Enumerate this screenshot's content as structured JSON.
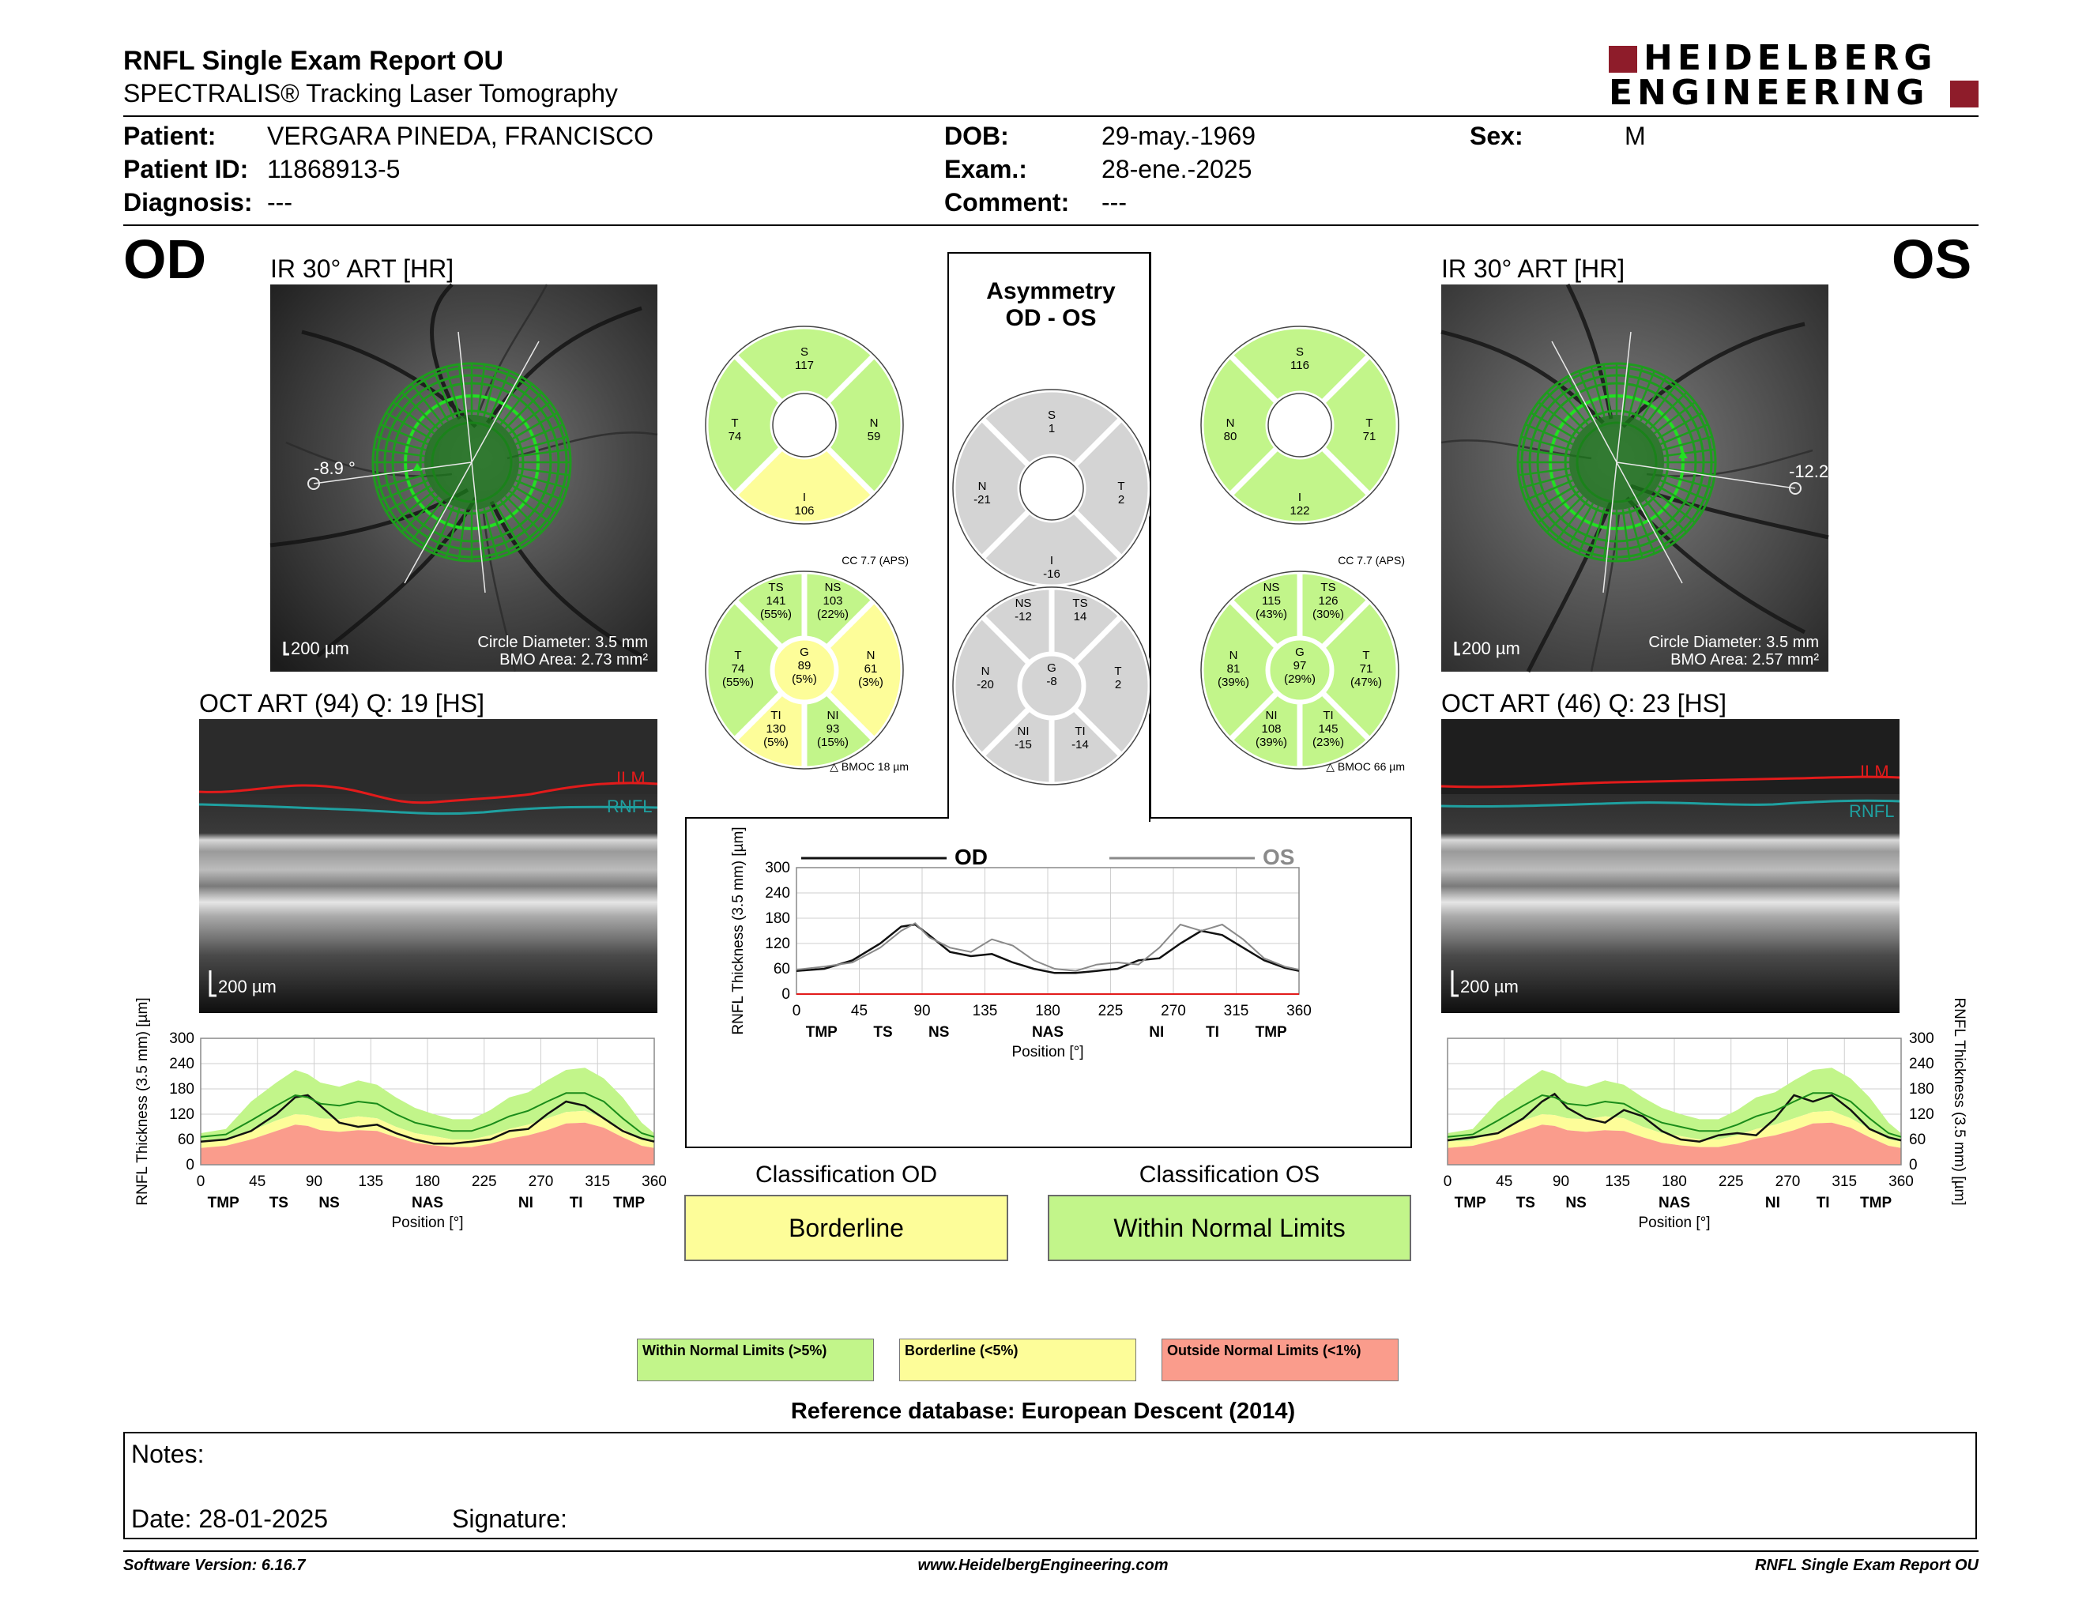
{
  "header": {
    "title": "RNFL Single Exam Report OU",
    "subtitle": "SPECTRALIS® Tracking Laser Tomography",
    "brand_line1": "HEIDELBERG",
    "brand_line2": "ENGINEERING"
  },
  "patient": {
    "patient_label": "Patient:",
    "patient_value": "VERGARA PINEDA, FRANCISCO",
    "id_label": "Patient ID:",
    "id_value": "11868913-5",
    "diag_label": "Diagnosis:",
    "diag_value": "---",
    "dob_label": "DOB:",
    "dob_value": "29-may.-1969",
    "exam_label": "Exam.:",
    "exam_value": "28-ene.-2025",
    "comment_label": "Comment:",
    "comment_value": "---",
    "sex_label": "Sex:",
    "sex_value": "M"
  },
  "od": {
    "eye": "OD",
    "ir_title": "IR 30° ART [HR]",
    "angle": "-8.9 °",
    "scale": "200 µm",
    "circle": "Circle Diameter: 3.5 mm",
    "bmo": "BMO Area: 2.73 mm²",
    "oct_title": "OCT ART (94) Q: 19 [HS]",
    "oct_scale": "200 µm",
    "ilm": "ILM",
    "rnfl": "RNFL",
    "quad": {
      "S": "117",
      "N": "59",
      "I": "106",
      "T": "74"
    },
    "cc": "CC 7.7 (APS)",
    "bmoc": "BMOC 18 µm",
    "sectors": {
      "TS": {
        "v": "141",
        "p": "(55%)"
      },
      "NS": {
        "v": "103",
        "p": "(22%)"
      },
      "T": {
        "v": "74",
        "p": "(55%)"
      },
      "G": {
        "v": "89",
        "p": "(5%)"
      },
      "N": {
        "v": "61",
        "p": "(3%)"
      },
      "TI": {
        "v": "130",
        "p": "(5%)"
      },
      "NI": {
        "v": "93",
        "p": "(15%)"
      }
    },
    "class_title": "Classification OD",
    "class_value": "Borderline"
  },
  "os": {
    "eye": "OS",
    "ir_title": "IR 30° ART [HR]",
    "angle": "-12.2",
    "scale": "200 µm",
    "circle": "Circle Diameter: 3.5 mm",
    "bmo": "BMO Area: 2.57 mm²",
    "oct_title": "OCT ART (46) Q: 23 [HS]",
    "oct_scale": "200 µm",
    "ilm": "ILM",
    "rnfl": "RNFL",
    "quad": {
      "S": "116",
      "N": "80",
      "I": "122",
      "T": "71"
    },
    "cc": "CC 7.7 (APS)",
    "bmoc": "BMOC 66 µm",
    "sectors": {
      "NS": {
        "v": "115",
        "p": "(43%)"
      },
      "TS": {
        "v": "126",
        "p": "(30%)"
      },
      "N": {
        "v": "81",
        "p": "(39%)"
      },
      "G": {
        "v": "97",
        "p": "(29%)"
      },
      "T": {
        "v": "71",
        "p": "(47%)"
      },
      "NI": {
        "v": "108",
        "p": "(39%)"
      },
      "TI": {
        "v": "145",
        "p": "(23%)"
      }
    },
    "class_title": "Classification OS",
    "class_value": "Within Normal Limits"
  },
  "asym": {
    "title1": "Asymmetry",
    "title2": "OD - OS",
    "quad": {
      "S": "1",
      "N": "-21",
      "T": "2",
      "I": "-16"
    },
    "sectors": {
      "NS": "-12",
      "TS": "14",
      "N": "-20",
      "G": "-8",
      "T": "2",
      "NI": "-15",
      "TI": "-14"
    }
  },
  "legend": {
    "wnl": "Within Normal Limits (>5%)",
    "bl": "Borderline (<5%)",
    "onl": "Outside Normal Limits (<1%)",
    "db": "Reference database: European Descent (2014)"
  },
  "notes": {
    "notes_label": "Notes:",
    "date_label": "Date: 28-01-2025",
    "sig_label": "Signature:"
  },
  "footer": {
    "version": "Software Version: 6.16.7",
    "url": "www.HeidelbergEngineering.com",
    "report": "RNFL Single Exam Report OU"
  },
  "colors": {
    "wnl": "#c2f58a",
    "bl": "#fdfd99",
    "onl": "#fa9c8c",
    "gray": "#d4d4d4",
    "brand": "#8e1c2a",
    "ilm": "#e21b1b",
    "rnfl": "#1fa0a0",
    "green_circle": "#19c319"
  },
  "chart_data": [
    {
      "type": "line",
      "name": "od-profile",
      "xlabel": "Position [°]",
      "ylabel": "RNFL Thickness (3.5 mm) [µm]",
      "xlim": [
        0,
        360
      ],
      "ylim": [
        0,
        300
      ],
      "xticks": [
        0,
        45,
        90,
        135,
        180,
        225,
        270,
        315,
        360
      ],
      "yticks": [
        0,
        60,
        120,
        180,
        240,
        300
      ],
      "sector_labels": [
        {
          "x": 18,
          "t": "TMP"
        },
        {
          "x": 62,
          "t": "TS"
        },
        {
          "x": 102,
          "t": "NS"
        },
        {
          "x": 180,
          "t": "NAS"
        },
        {
          "x": 258,
          "t": "NI"
        },
        {
          "x": 298,
          "t": "TI"
        },
        {
          "x": 340,
          "t": "TMP"
        }
      ],
      "x": [
        0,
        20,
        40,
        60,
        75,
        85,
        95,
        110,
        125,
        140,
        155,
        170,
        185,
        200,
        215,
        230,
        245,
        260,
        275,
        290,
        305,
        320,
        335,
        350,
        360
      ],
      "series": [
        {
          "values": [
            55,
            60,
            80,
            120,
            160,
            165,
            140,
            100,
            90,
            95,
            75,
            60,
            50,
            50,
            55,
            60,
            80,
            85,
            120,
            150,
            140,
            110,
            80,
            62,
            55
          ]
        },
        {
          "values": [
            66,
            72,
            105,
            140,
            165,
            160,
            145,
            140,
            150,
            145,
            120,
            100,
            90,
            80,
            80,
            95,
            115,
            128,
            150,
            170,
            170,
            150,
            110,
            75,
            66
          ]
        }
      ],
      "bands": {
        "bl_upper": [
          75,
          85,
          150,
          195,
          225,
          215,
          195,
          185,
          200,
          190,
          160,
          135,
          120,
          108,
          108,
          130,
          160,
          172,
          200,
          225,
          230,
          205,
          160,
          100,
          75
        ],
        "wnl_lower": [
          55,
          58,
          80,
          105,
          120,
          118,
          110,
          108,
          115,
          110,
          90,
          75,
          68,
          60,
          60,
          70,
          85,
          95,
          110,
          125,
          128,
          110,
          85,
          60,
          55
        ],
        "onl_upper": [
          40,
          45,
          60,
          80,
          95,
          92,
          82,
          78,
          82,
          80,
          65,
          52,
          46,
          42,
          42,
          50,
          62,
          70,
          82,
          98,
          100,
          88,
          65,
          45,
          40
        ]
      }
    },
    {
      "type": "line",
      "name": "ou-comparison",
      "xlabel": "Position [°]",
      "ylabel": "RNFL Thickness (3.5 mm) [µm]",
      "xlim": [
        0,
        360
      ],
      "ylim": [
        0,
        300
      ],
      "xticks": [
        0,
        45,
        90,
        135,
        180,
        225,
        270,
        315,
        360
      ],
      "yticks": [
        0,
        60,
        120,
        180,
        240,
        300
      ],
      "sector_labels": [
        {
          "x": 18,
          "t": "TMP"
        },
        {
          "x": 62,
          "t": "TS"
        },
        {
          "x": 102,
          "t": "NS"
        },
        {
          "x": 180,
          "t": "NAS"
        },
        {
          "x": 258,
          "t": "NI"
        },
        {
          "x": 298,
          "t": "TI"
        },
        {
          "x": 340,
          "t": "TMP"
        }
      ],
      "legend": [
        "OD",
        "OS"
      ],
      "x": [
        0,
        20,
        40,
        60,
        75,
        85,
        95,
        110,
        125,
        140,
        155,
        170,
        185,
        200,
        215,
        230,
        245,
        260,
        275,
        290,
        305,
        320,
        335,
        350,
        360
      ],
      "series": [
        {
          "name": "OD",
          "values": [
            55,
            60,
            80,
            120,
            160,
            165,
            140,
            100,
            90,
            95,
            75,
            60,
            50,
            50,
            55,
            60,
            80,
            85,
            120,
            150,
            140,
            110,
            80,
            62,
            55
          ]
        },
        {
          "name": "OS",
          "values": [
            58,
            65,
            75,
            110,
            150,
            168,
            135,
            110,
            100,
            130,
            115,
            80,
            60,
            55,
            70,
            75,
            70,
            110,
            165,
            150,
            165,
            130,
            85,
            65,
            58
          ]
        }
      ]
    },
    {
      "type": "line",
      "name": "os-profile",
      "xlabel": "Position [°]",
      "ylabel": "RNFL Thickness (3.5 mm) [µm]",
      "xlim": [
        0,
        360
      ],
      "ylim": [
        0,
        300
      ],
      "xticks": [
        0,
        45,
        90,
        135,
        180,
        225,
        270,
        315,
        360
      ],
      "yticks": [
        0,
        60,
        120,
        180,
        240,
        300
      ],
      "sector_labels": [
        {
          "x": 18,
          "t": "TMP"
        },
        {
          "x": 62,
          "t": "TS"
        },
        {
          "x": 102,
          "t": "NS"
        },
        {
          "x": 180,
          "t": "NAS"
        },
        {
          "x": 258,
          "t": "NI"
        },
        {
          "x": 298,
          "t": "TI"
        },
        {
          "x": 340,
          "t": "TMP"
        }
      ],
      "x": [
        0,
        20,
        40,
        60,
        75,
        85,
        95,
        110,
        125,
        140,
        155,
        170,
        185,
        200,
        215,
        230,
        245,
        260,
        275,
        290,
        305,
        320,
        335,
        350,
        360
      ],
      "series": [
        {
          "values": [
            58,
            65,
            75,
            110,
            150,
            168,
            135,
            110,
            100,
            130,
            115,
            80,
            60,
            55,
            70,
            75,
            70,
            110,
            165,
            150,
            165,
            130,
            85,
            65,
            58
          ]
        },
        {
          "values": [
            66,
            72,
            105,
            140,
            165,
            160,
            145,
            140,
            150,
            145,
            120,
            100,
            90,
            80,
            80,
            95,
            115,
            128,
            150,
            170,
            170,
            150,
            110,
            75,
            66
          ]
        }
      ],
      "bands": {
        "bl_upper": [
          75,
          85,
          150,
          195,
          225,
          215,
          195,
          185,
          200,
          190,
          160,
          135,
          120,
          108,
          108,
          130,
          160,
          172,
          200,
          225,
          230,
          205,
          160,
          100,
          75
        ],
        "wnl_lower": [
          55,
          58,
          80,
          105,
          120,
          118,
          110,
          108,
          115,
          110,
          90,
          75,
          68,
          60,
          60,
          70,
          85,
          95,
          110,
          125,
          128,
          110,
          85,
          60,
          55
        ],
        "onl_upper": [
          40,
          45,
          60,
          80,
          95,
          92,
          82,
          78,
          82,
          80,
          65,
          52,
          46,
          42,
          42,
          50,
          62,
          70,
          82,
          98,
          100,
          88,
          65,
          45,
          40
        ]
      }
    }
  ]
}
